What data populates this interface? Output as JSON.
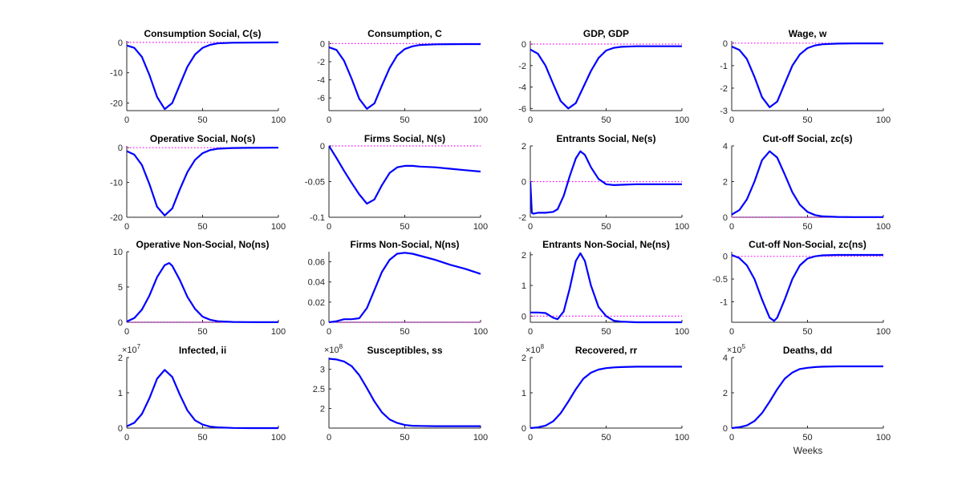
{
  "figure": {
    "xlabel": "Weeks",
    "line_color": "#0000ff",
    "zero_line_color": "#ff00ff",
    "background": "#ffffff"
  },
  "chart_data": [
    {
      "type": "line",
      "title": "Consumption Social, C(s)",
      "xlim": [
        0,
        100
      ],
      "xticks": [
        0,
        50,
        100
      ],
      "ylim": [
        -22.5,
        0.5
      ],
      "yticks": [
        -20,
        -10,
        0
      ],
      "multiplier": "",
      "zero_line": true,
      "series": [
        {
          "x": [
            0,
            5,
            10,
            15,
            20,
            25,
            30,
            35,
            40,
            45,
            50,
            55,
            60,
            70,
            80,
            90,
            100
          ],
          "y": [
            -1,
            -1.8,
            -4.8,
            -10.8,
            -18,
            -22,
            -20,
            -14,
            -8,
            -4,
            -1.8,
            -0.8,
            -0.3,
            -0.1,
            -0.05,
            -0.02,
            -0.01
          ]
        }
      ]
    },
    {
      "type": "line",
      "title": "Consumption, C",
      "xlim": [
        0,
        100
      ],
      "xticks": [
        0,
        50,
        100
      ],
      "ylim": [
        -7.4,
        0.3
      ],
      "yticks": [
        -6,
        -4,
        -2,
        0
      ],
      "multiplier": "",
      "zero_line": true,
      "series": [
        {
          "x": [
            0,
            5,
            10,
            15,
            20,
            25,
            30,
            35,
            40,
            45,
            50,
            55,
            60,
            70,
            80,
            90,
            100
          ],
          "y": [
            -0.4,
            -0.7,
            -1.9,
            -3.9,
            -6.1,
            -7.2,
            -6.6,
            -4.6,
            -2.7,
            -1.3,
            -0.6,
            -0.3,
            -0.15,
            -0.08,
            -0.06,
            -0.05,
            -0.05
          ]
        }
      ]
    },
    {
      "type": "line",
      "title": "GDP, GDP",
      "xlim": [
        0,
        100
      ],
      "xticks": [
        0,
        50,
        100
      ],
      "ylim": [
        -6.2,
        0.3
      ],
      "yticks": [
        -6,
        -4,
        -2,
        0
      ],
      "multiplier": "",
      "zero_line": true,
      "series": [
        {
          "x": [
            0,
            5,
            10,
            15,
            20,
            25,
            30,
            35,
            40,
            45,
            50,
            55,
            60,
            70,
            80,
            90,
            100
          ],
          "y": [
            -0.5,
            -0.9,
            -2,
            -3.7,
            -5.3,
            -6,
            -5.5,
            -4,
            -2.5,
            -1.3,
            -0.6,
            -0.35,
            -0.25,
            -0.2,
            -0.2,
            -0.2,
            -0.2
          ]
        }
      ]
    },
    {
      "type": "line",
      "title": "Wage, w",
      "xlim": [
        0,
        100
      ],
      "xticks": [
        0,
        50,
        100
      ],
      "ylim": [
        -3,
        0.1
      ],
      "yticks": [
        -3,
        -2,
        -1,
        0
      ],
      "multiplier": "",
      "zero_line": true,
      "series": [
        {
          "x": [
            0,
            5,
            10,
            15,
            20,
            25,
            30,
            35,
            40,
            45,
            50,
            55,
            60,
            70,
            80,
            90,
            100
          ],
          "y": [
            -0.15,
            -0.3,
            -0.7,
            -1.5,
            -2.4,
            -2.85,
            -2.6,
            -1.8,
            -1.0,
            -0.5,
            -0.22,
            -0.1,
            -0.05,
            -0.02,
            -0.01,
            -0.01,
            -0.01
          ]
        }
      ]
    },
    {
      "type": "line",
      "title": "Operative Social, No(s)",
      "xlim": [
        0,
        100
      ],
      "xticks": [
        0,
        50,
        100
      ],
      "ylim": [
        -20,
        0.5
      ],
      "yticks": [
        -20,
        -10,
        0
      ],
      "multiplier": "",
      "zero_line": true,
      "series": [
        {
          "x": [
            0,
            5,
            10,
            15,
            20,
            25,
            30,
            35,
            40,
            45,
            50,
            55,
            60,
            70,
            80,
            90,
            100
          ],
          "y": [
            -1,
            -2,
            -5,
            -10.5,
            -17,
            -19.5,
            -17.5,
            -12,
            -7,
            -3.5,
            -1.6,
            -0.7,
            -0.3,
            -0.1,
            -0.05,
            -0.02,
            -0.01
          ]
        }
      ]
    },
    {
      "type": "line",
      "title": "Firms Social, N(s)",
      "xlim": [
        0,
        100
      ],
      "xticks": [
        0,
        50,
        100
      ],
      "ylim": [
        -0.1,
        0
      ],
      "yticks": [
        -0.1,
        -0.05,
        0
      ],
      "multiplier": "",
      "zero_line": true,
      "series": [
        {
          "x": [
            0,
            5,
            10,
            15,
            20,
            25,
            30,
            35,
            40,
            45,
            50,
            55,
            60,
            70,
            80,
            90,
            100
          ],
          "y": [
            0,
            -0.017,
            -0.035,
            -0.052,
            -0.068,
            -0.081,
            -0.075,
            -0.055,
            -0.038,
            -0.03,
            -0.028,
            -0.028,
            -0.029,
            -0.03,
            -0.032,
            -0.034,
            -0.036
          ]
        }
      ]
    },
    {
      "type": "line",
      "title": "Entrants Social, Ne(s)",
      "xlim": [
        0,
        100
      ],
      "xticks": [
        0,
        50,
        100
      ],
      "ylim": [
        -2,
        2
      ],
      "yticks": [
        -2,
        0,
        2
      ],
      "multiplier": "",
      "zero_line": true,
      "series": [
        {
          "x": [
            0,
            1,
            2,
            5,
            10,
            15,
            18,
            22,
            26,
            30,
            33,
            36,
            40,
            45,
            50,
            55,
            60,
            70,
            80,
            90,
            100
          ],
          "y": [
            0,
            -1.75,
            -1.8,
            -1.75,
            -1.75,
            -1.7,
            -1.55,
            -0.8,
            0.3,
            1.3,
            1.7,
            1.5,
            0.8,
            0.15,
            -0.15,
            -0.2,
            -0.18,
            -0.15,
            -0.15,
            -0.15,
            -0.15
          ]
        }
      ]
    },
    {
      "type": "line",
      "title": "Cut-off Social, zc(s)",
      "xlim": [
        0,
        100
      ],
      "xticks": [
        0,
        50,
        100
      ],
      "ylim": [
        0,
        4
      ],
      "yticks": [
        0,
        2,
        4
      ],
      "multiplier": "",
      "zero_line": true,
      "series": [
        {
          "x": [
            0,
            5,
            10,
            15,
            20,
            25,
            30,
            35,
            40,
            45,
            50,
            55,
            60,
            70,
            80,
            90,
            100
          ],
          "y": [
            0.15,
            0.4,
            1.0,
            2.0,
            3.2,
            3.7,
            3.35,
            2.4,
            1.4,
            0.7,
            0.3,
            0.12,
            0.05,
            0.02,
            0.01,
            0.01,
            0.01
          ]
        }
      ]
    },
    {
      "type": "line",
      "title": "Operative Non-Social, No(ns)",
      "xlim": [
        0,
        100
      ],
      "xticks": [
        0,
        50,
        100
      ],
      "ylim": [
        0,
        10
      ],
      "yticks": [
        0,
        5,
        10
      ],
      "multiplier": "",
      "zero_line": true,
      "series": [
        {
          "x": [
            0,
            5,
            10,
            15,
            20,
            25,
            28,
            30,
            35,
            40,
            45,
            50,
            55,
            60,
            70,
            80,
            90,
            100
          ],
          "y": [
            0.1,
            0.6,
            1.8,
            3.8,
            6.4,
            8.1,
            8.4,
            8.0,
            6.0,
            3.6,
            1.9,
            0.8,
            0.35,
            0.15,
            0.05,
            0.02,
            0.01,
            0.01
          ]
        }
      ]
    },
    {
      "type": "line",
      "title": "Firms Non-Social, N(ns)",
      "xlim": [
        0,
        100
      ],
      "xticks": [
        0,
        50,
        100
      ],
      "ylim": [
        0,
        0.07
      ],
      "yticks": [
        0,
        0.02,
        0.04,
        0.06
      ],
      "multiplier": "",
      "zero_line": true,
      "series": [
        {
          "x": [
            0,
            5,
            10,
            15,
            20,
            25,
            30,
            35,
            40,
            45,
            50,
            55,
            60,
            70,
            80,
            90,
            100
          ],
          "y": [
            0,
            0.001,
            0.003,
            0.003,
            0.004,
            0.014,
            0.032,
            0.05,
            0.062,
            0.068,
            0.069,
            0.068,
            0.066,
            0.062,
            0.057,
            0.053,
            0.048
          ]
        }
      ]
    },
    {
      "type": "line",
      "title": "Entrants Non-Social, Ne(ns)",
      "xlim": [
        0,
        100
      ],
      "xticks": [
        0,
        50,
        100
      ],
      "ylim": [
        -0.2,
        2.1
      ],
      "yticks": [
        0,
        1,
        2
      ],
      "multiplier": "",
      "zero_line": true,
      "series": [
        {
          "x": [
            0,
            5,
            10,
            15,
            18,
            22,
            26,
            30,
            33,
            36,
            40,
            45,
            50,
            55,
            60,
            70,
            80,
            90,
            100
          ],
          "y": [
            0.12,
            0.12,
            0.1,
            -0.05,
            -0.1,
            0.15,
            0.9,
            1.8,
            2.05,
            1.8,
            1.0,
            0.3,
            0.0,
            -0.15,
            -0.18,
            -0.2,
            -0.2,
            -0.2,
            -0.2
          ]
        }
      ]
    },
    {
      "type": "line",
      "title": "Cut-off Non-Social, zc(ns)",
      "xlim": [
        0,
        100
      ],
      "xticks": [
        0,
        50,
        100
      ],
      "ylim": [
        -1.45,
        0.1
      ],
      "yticks": [
        -1,
        -0.5,
        0
      ],
      "multiplier": "",
      "zero_line": true,
      "series": [
        {
          "x": [
            0,
            5,
            10,
            15,
            20,
            25,
            28,
            30,
            35,
            40,
            45,
            50,
            55,
            60,
            70,
            80,
            90,
            100
          ],
          "y": [
            0.03,
            -0.04,
            -0.2,
            -0.5,
            -0.95,
            -1.35,
            -1.42,
            -1.35,
            -0.95,
            -0.5,
            -0.2,
            -0.05,
            0.0,
            0.02,
            0.03,
            0.03,
            0.03,
            0.03
          ]
        }
      ]
    },
    {
      "type": "line",
      "title": "Infected, ii",
      "xlim": [
        0,
        100
      ],
      "xticks": [
        0,
        50,
        100
      ],
      "ylim": [
        0,
        2
      ],
      "yticks": [
        0,
        1,
        2
      ],
      "multiplier": "×10^7",
      "zero_line": false,
      "series": [
        {
          "x": [
            0,
            5,
            10,
            15,
            20,
            25,
            30,
            35,
            40,
            45,
            50,
            55,
            60,
            70,
            80,
            90,
            100
          ],
          "y": [
            0.05,
            0.15,
            0.4,
            0.85,
            1.4,
            1.65,
            1.45,
            0.95,
            0.5,
            0.22,
            0.1,
            0.04,
            0.02,
            0.005,
            0,
            0,
            0
          ]
        }
      ]
    },
    {
      "type": "line",
      "title": "Susceptibles, ss",
      "xlim": [
        0,
        100
      ],
      "xticks": [
        0,
        50,
        100
      ],
      "ylim": [
        1.5,
        3.3
      ],
      "yticks": [
        2,
        2.5,
        3
      ],
      "multiplier": "×10^8",
      "zero_line": false,
      "series": [
        {
          "x": [
            0,
            5,
            10,
            15,
            20,
            25,
            30,
            35,
            40,
            45,
            50,
            55,
            60,
            70,
            80,
            90,
            100
          ],
          "y": [
            3.27,
            3.25,
            3.2,
            3.08,
            2.85,
            2.52,
            2.18,
            1.9,
            1.72,
            1.63,
            1.58,
            1.56,
            1.555,
            1.55,
            1.55,
            1.55,
            1.55
          ]
        }
      ]
    },
    {
      "type": "line",
      "title": "Recovered, rr",
      "xlim": [
        0,
        100
      ],
      "xticks": [
        0,
        50,
        100
      ],
      "ylim": [
        0,
        2
      ],
      "yticks": [
        0,
        1,
        2
      ],
      "multiplier": "×10^8",
      "zero_line": false,
      "series": [
        {
          "x": [
            0,
            5,
            10,
            15,
            20,
            25,
            30,
            35,
            40,
            45,
            50,
            55,
            60,
            70,
            80,
            90,
            100
          ],
          "y": [
            0,
            0.02,
            0.07,
            0.19,
            0.42,
            0.75,
            1.1,
            1.4,
            1.57,
            1.66,
            1.7,
            1.72,
            1.73,
            1.74,
            1.74,
            1.74,
            1.74
          ]
        }
      ]
    },
    {
      "type": "line",
      "title": "Deaths, dd",
      "xlim": [
        0,
        100
      ],
      "xticks": [
        0,
        50,
        100
      ],
      "ylim": [
        0,
        4
      ],
      "yticks": [
        0,
        2,
        4
      ],
      "multiplier": "×10^5",
      "zero_line": false,
      "series": [
        {
          "x": [
            0,
            5,
            10,
            15,
            20,
            25,
            30,
            35,
            40,
            45,
            50,
            55,
            60,
            70,
            80,
            90,
            100
          ],
          "y": [
            0,
            0.05,
            0.15,
            0.4,
            0.85,
            1.5,
            2.2,
            2.8,
            3.15,
            3.35,
            3.42,
            3.46,
            3.48,
            3.5,
            3.5,
            3.5,
            3.5
          ]
        }
      ]
    }
  ]
}
